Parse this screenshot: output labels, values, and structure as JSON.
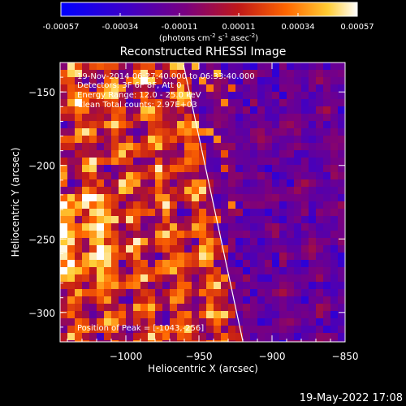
{
  "colorbar": {
    "ticks": [
      "-0.00057",
      "-0.00034",
      "-0.00011",
      "0.00011",
      "0.00034",
      "0.00057"
    ],
    "units_prefix": "(photons cm",
    "units_exp1": "-2",
    "units_mid1": " s",
    "units_exp2": "-1",
    "units_mid2": " asec",
    "units_exp3": "-2",
    "units_suffix": ")",
    "scale_colors": [
      "#0000ff",
      "#3d00c8",
      "#7a0080",
      "#bf1a1a",
      "#ff6600",
      "#ffcc33",
      "#ffffff"
    ]
  },
  "plot": {
    "title": "Reconstructed RHESSI Image",
    "xlabel": "Heliocentric X (arcsec)",
    "ylabel": "Heliocentric Y (arcsec)",
    "xticks": [
      "-1000",
      "-950",
      "-900",
      "-850"
    ],
    "yticks": [
      "-150",
      "-200",
      "-250",
      "-300"
    ],
    "annotations": [
      "19-Nov-2014 06:27:40.000 to 06:33:40.000",
      "Detectors: 3F 6F 8F, Att 0",
      "Energy Range: 12.0 - 25.0 keV",
      "Clean      Total counts: 2.97E+03"
    ],
    "peak_text": "Position of Peak = [-1043,-256]"
  },
  "footer": {
    "timestamp": "19-May-2022 17:08"
  },
  "chart_data": {
    "type": "heatmap",
    "title": "Reconstructed RHESSI Image",
    "xlabel": "Heliocentric X (arcsec)",
    "ylabel": "Heliocentric Y (arcsec)",
    "xlim": [
      -1045,
      -850
    ],
    "ylim": [
      -320,
      -130
    ],
    "color_range": [
      -0.00057,
      0.00057
    ],
    "colormap": "blue-purple-red-yellow-white",
    "peak": [
      -1043,
      -256
    ]
  }
}
